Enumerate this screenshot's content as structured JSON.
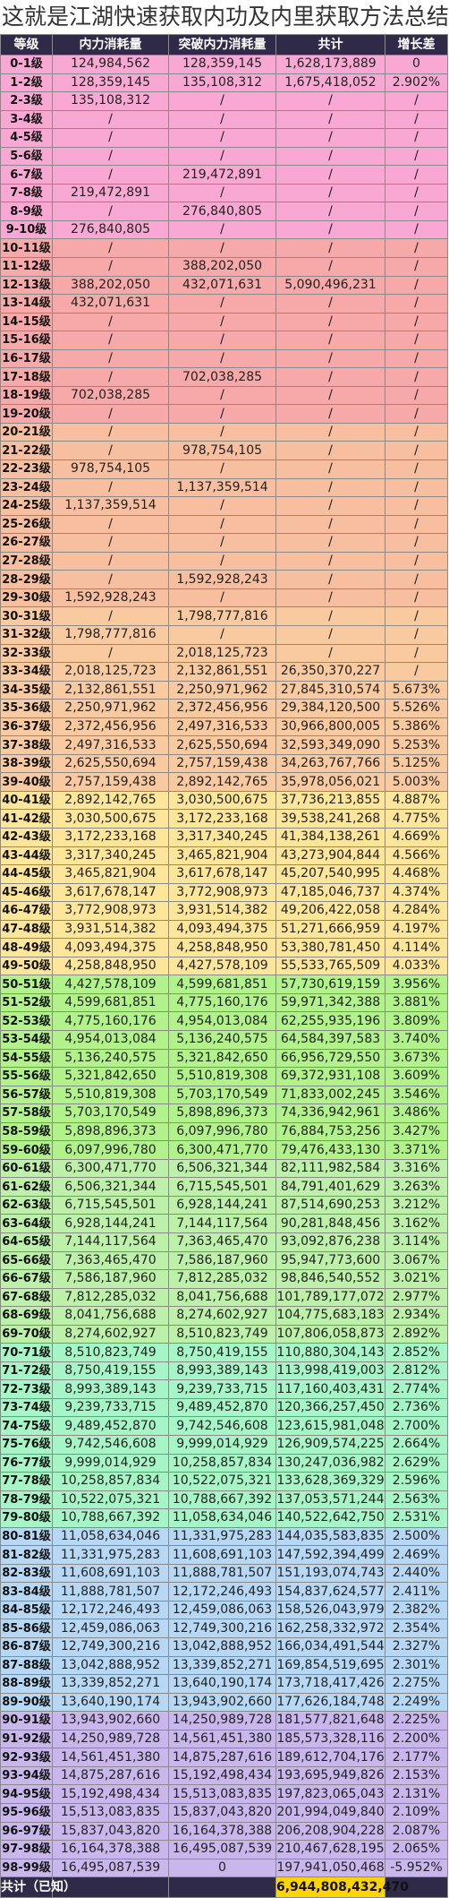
{
  "title": "这就是江湖快速获取内功及内里获取方法总结",
  "headers": [
    "等级",
    "内力消耗量",
    "突破内力消耗量",
    "共计",
    "增长差"
  ],
  "band_colors": [
    "#f9a8d4",
    "#f7a8a8",
    "#f7bfa0",
    "#f9c9a0",
    "#fde599",
    "#b2f28a",
    "#bdf0a8",
    "#a6f5c6",
    "#b6d8f5",
    "#c8b6ec"
  ],
  "rows": [
    [
      "0-1级",
      "124,984,562",
      "128,359,145",
      "1,628,173,889",
      "0"
    ],
    [
      "1-2级",
      "128,359,145",
      "135,108,312",
      "1,675,418,052",
      "2.902%"
    ],
    [
      "2-3级",
      "135,108,312",
      "/",
      "/",
      "/"
    ],
    [
      "3-4级",
      "/",
      "/",
      "/",
      "/"
    ],
    [
      "4-5级",
      "/",
      "/",
      "/",
      "/"
    ],
    [
      "5-6级",
      "/",
      "/",
      "/",
      "/"
    ],
    [
      "6-7级",
      "/",
      "219,472,891",
      "/",
      "/"
    ],
    [
      "7-8级",
      "219,472,891",
      "/",
      "/",
      "/"
    ],
    [
      "8-9级",
      "/",
      "276,840,805",
      "/",
      "/"
    ],
    [
      "9-10级",
      "276,840,805",
      "/",
      "/",
      "/"
    ],
    [
      "10-11级",
      "/",
      "/",
      "/",
      "/"
    ],
    [
      "11-12级",
      "/",
      "388,202,050",
      "/",
      "/"
    ],
    [
      "12-13级",
      "388,202,050",
      "432,071,631",
      "5,090,496,231",
      "/"
    ],
    [
      "13-14级",
      "432,071,631",
      "/",
      "/",
      "/"
    ],
    [
      "14-15级",
      "/",
      "/",
      "/",
      "/"
    ],
    [
      "15-16级",
      "/",
      "/",
      "/",
      "/"
    ],
    [
      "16-17级",
      "/",
      "/",
      "/",
      "/"
    ],
    [
      "17-18级",
      "/",
      "702,038,285",
      "/",
      "/"
    ],
    [
      "18-19级",
      "702,038,285",
      "/",
      "/",
      "/"
    ],
    [
      "19-20级",
      "/",
      "/",
      "/",
      "/"
    ],
    [
      "20-21级",
      "/",
      "/",
      "/",
      "/"
    ],
    [
      "21-22级",
      "/",
      "978,754,105",
      "/",
      "/"
    ],
    [
      "22-23级",
      "978,754,105",
      "/",
      "/",
      "/"
    ],
    [
      "23-24级",
      "/",
      "1,137,359,514",
      "/",
      "/"
    ],
    [
      "24-25级",
      "1,137,359,514",
      "/",
      "/",
      "/"
    ],
    [
      "25-26级",
      "/",
      "/",
      "/",
      "/"
    ],
    [
      "26-27级",
      "/",
      "/",
      "/",
      "/"
    ],
    [
      "27-28级",
      "/",
      "/",
      "/",
      "/"
    ],
    [
      "28-29级",
      "/",
      "1,592,928,243",
      "/",
      "/"
    ],
    [
      "29-30级",
      "1,592,928,243",
      "/",
      "/",
      "/"
    ],
    [
      "30-31级",
      "/",
      "1,798,777,816",
      "/",
      "/"
    ],
    [
      "31-32级",
      "1,798,777,816",
      "/",
      "/",
      "/"
    ],
    [
      "32-33级",
      "/",
      "2,018,125,723",
      "/",
      "/"
    ],
    [
      "33-34级",
      "2,018,125,723",
      "2,132,861,551",
      "26,350,370,227",
      "/"
    ],
    [
      "34-35级",
      "2,132,861,551",
      "2,250,971,962",
      "27,845,310,574",
      "5.673%"
    ],
    [
      "35-36级",
      "2,250,971,962",
      "2,372,456,956",
      "29,384,120,500",
      "5.526%"
    ],
    [
      "36-37级",
      "2,372,456,956",
      "2,497,316,533",
      "30,966,800,005",
      "5.386%"
    ],
    [
      "37-38级",
      "2,497,316,533",
      "2,625,550,694",
      "32,593,349,090",
      "5.253%"
    ],
    [
      "38-39级",
      "2,625,550,694",
      "2,757,159,438",
      "34,263,767,766",
      "5.125%"
    ],
    [
      "39-40级",
      "2,757,159,438",
      "2,892,142,765",
      "35,978,056,021",
      "5.003%"
    ],
    [
      "40-41级",
      "2,892,142,765",
      "3,030,500,675",
      "37,736,213,855",
      "4.887%"
    ],
    [
      "41-42级",
      "3,030,500,675",
      "3,172,233,168",
      "39,538,241,268",
      "4.775%"
    ],
    [
      "42-43级",
      "3,172,233,168",
      "3,317,340,245",
      "41,384,138,261",
      "4.669%"
    ],
    [
      "43-44级",
      "3,317,340,245",
      "3,465,821,904",
      "43,273,904,844",
      "4.566%"
    ],
    [
      "44-45级",
      "3,465,821,904",
      "3,617,678,147",
      "45,207,540,995",
      "4.468%"
    ],
    [
      "45-46级",
      "3,617,678,147",
      "3,772,908,973",
      "47,185,046,737",
      "4.374%"
    ],
    [
      "46-47级",
      "3,772,908,973",
      "3,931,514,382",
      "49,206,422,058",
      "4.284%"
    ],
    [
      "47-48级",
      "3,931,514,382",
      "4,093,494,375",
      "51,271,666,959",
      "4.197%"
    ],
    [
      "48-49级",
      "4,093,494,375",
      "4,258,848,950",
      "53,380,781,450",
      "4.114%"
    ],
    [
      "49-50级",
      "4,258,848,950",
      "4,427,578,109",
      "55,533,765,509",
      "4.033%"
    ],
    [
      "50-51级",
      "4,427,578,109",
      "4,599,681,851",
      "57,730,619,159",
      "3.956%"
    ],
    [
      "51-52级",
      "4,599,681,851",
      "4,775,160,176",
      "59,971,342,388",
      "3.881%"
    ],
    [
      "52-53级",
      "4,775,160,176",
      "4,954,013,084",
      "62,255,935,196",
      "3.809%"
    ],
    [
      "53-54级",
      "4,954,013,084",
      "5,136,240,575",
      "64,584,397,583",
      "3.740%"
    ],
    [
      "54-55级",
      "5,136,240,575",
      "5,321,842,650",
      "66,956,729,550",
      "3.673%"
    ],
    [
      "55-56级",
      "5,321,842,650",
      "5,510,819,308",
      "69,372,931,108",
      "3.609%"
    ],
    [
      "56-57级",
      "5,510,819,308",
      "5,703,170,549",
      "71,833,002,245",
      "3.546%"
    ],
    [
      "57-58级",
      "5,703,170,549",
      "5,898,896,373",
      "74,336,942,961",
      "3.486%"
    ],
    [
      "58-59级",
      "5,898,896,373",
      "6,097,996,780",
      "76,884,753,256",
      "3.427%"
    ],
    [
      "59-60级",
      "6,097,996,780",
      "6,300,471,770",
      "79,476,433,130",
      "3.371%"
    ],
    [
      "60-61级",
      "6,300,471,770",
      "6,506,321,344",
      "82,111,982,584",
      "3.316%"
    ],
    [
      "61-62级",
      "6,506,321,344",
      "6,715,545,501",
      "84,791,401,629",
      "3.263%"
    ],
    [
      "62-63级",
      "6,715,545,501",
      "6,928,144,241",
      "87,514,690,253",
      "3.212%"
    ],
    [
      "63-64级",
      "6,928,144,241",
      "7,144,117,564",
      "90,281,848,456",
      "3.162%"
    ],
    [
      "64-65级",
      "7,144,117,564",
      "7,363,465,470",
      "93,092,876,238",
      "3.114%"
    ],
    [
      "65-66级",
      "7,363,465,470",
      "7,586,187,960",
      "95,947,773,600",
      "3.067%"
    ],
    [
      "66-67级",
      "7,586,187,960",
      "7,812,285,032",
      "98,846,540,552",
      "3.021%"
    ],
    [
      "67-68级",
      "7,812,285,032",
      "8,041,756,688",
      "101,789,177,072",
      "2.977%"
    ],
    [
      "68-69级",
      "8,041,756,688",
      "8,274,602,927",
      "104,775,683,183",
      "2.934%"
    ],
    [
      "69-70级",
      "8,274,602,927",
      "8,510,823,749",
      "107,806,058,873",
      "2.892%"
    ],
    [
      "70-71级",
      "8,510,823,749",
      "8,750,419,155",
      "110,880,304,143",
      "2.852%"
    ],
    [
      "71-72级",
      "8,750,419,155",
      "8,993,389,143",
      "113,998,419,003",
      "2.812%"
    ],
    [
      "72-73级",
      "8,993,389,143",
      "9,239,733,715",
      "117,160,403,431",
      "2.774%"
    ],
    [
      "73-74级",
      "9,239,733,715",
      "9,489,452,870",
      "120,366,257,450",
      "2.736%"
    ],
    [
      "74-75级",
      "9,489,452,870",
      "9,742,546,608",
      "123,615,981,048",
      "2.700%"
    ],
    [
      "75-76级",
      "9,742,546,608",
      "9,999,014,929",
      "126,909,574,225",
      "2.664%"
    ],
    [
      "76-77级",
      "9,999,014,929",
      "10,258,857,834",
      "130,247,036,982",
      "2.629%"
    ],
    [
      "77-78级",
      "10,258,857,834",
      "10,522,075,321",
      "133,628,369,329",
      "2.596%"
    ],
    [
      "78-79级",
      "10,522,075,321",
      "10,788,667,392",
      "137,053,571,244",
      "2.563%"
    ],
    [
      "79-80级",
      "10,788,667,392",
      "11,058,634,046",
      "140,522,642,750",
      "2.531%"
    ],
    [
      "80-81级",
      "11,058,634,046",
      "11,331,975,283",
      "144,035,583,835",
      "2.500%"
    ],
    [
      "81-82级",
      "11,331,975,283",
      "11,608,691,103",
      "147,592,394,499",
      "2.469%"
    ],
    [
      "82-83级",
      "11,608,691,103",
      "11,888,781,507",
      "151,193,074,743",
      "2.440%"
    ],
    [
      "83-84级",
      "11,888,781,507",
      "12,172,246,493",
      "154,837,624,577",
      "2.411%"
    ],
    [
      "84-85级",
      "12,172,246,493",
      "12,459,086,063",
      "158,526,043,979",
      "2.382%"
    ],
    [
      "85-86级",
      "12,459,086,063",
      "12,749,300,216",
      "162,258,332,972",
      "2.354%"
    ],
    [
      "86-87级",
      "12,749,300,216",
      "13,042,888,952",
      "166,034,491,544",
      "2.327%"
    ],
    [
      "87-88级",
      "13,042,888,952",
      "13,339,852,271",
      "169,854,519,695",
      "2.301%"
    ],
    [
      "88-89级",
      "13,339,852,271",
      "13,640,190,174",
      "173,718,417,426",
      "2.275%"
    ],
    [
      "89-90级",
      "13,640,190,174",
      "13,943,902,660",
      "177,626,184,748",
      "2.249%"
    ],
    [
      "90-91级",
      "13,943,902,660",
      "14,250,989,728",
      "181,577,821,648",
      "2.225%"
    ],
    [
      "91-92级",
      "14,250,989,728",
      "14,561,451,380",
      "185,573,328,116",
      "2.200%"
    ],
    [
      "92-93级",
      "14,561,451,380",
      "14,875,287,616",
      "189,612,704,176",
      "2.177%"
    ],
    [
      "93-94级",
      "14,875,287,616",
      "15,192,498,434",
      "193,695,949,826",
      "2.153%"
    ],
    [
      "94-95级",
      "15,192,498,434",
      "15,513,083,835",
      "197,823,065,043",
      "2.131%"
    ],
    [
      "95-96级",
      "15,513,083,835",
      "15,837,043,820",
      "201,994,049,840",
      "2.109%"
    ],
    [
      "96-97级",
      "15,837,043,820",
      "16,164,378,388",
      "206,208,904,228",
      "2.087%"
    ],
    [
      "97-98级",
      "16,164,378,388",
      "16,495,087,539",
      "210,467,628,195",
      "2.065%"
    ],
    [
      "98-99级",
      "16,495,087,539",
      "0",
      "197,941,050,468",
      "-5.952%"
    ]
  ],
  "footer": {
    "label": "共计（已知）",
    "total": "6,944,808,432,470"
  }
}
